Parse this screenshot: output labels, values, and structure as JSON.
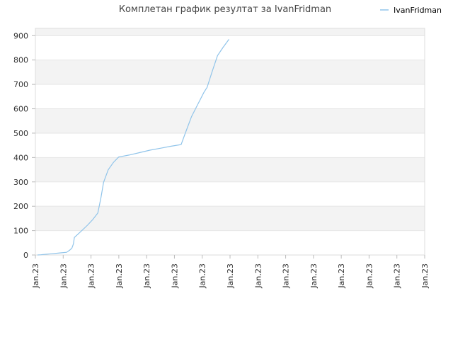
{
  "chart_data": {
    "type": "line",
    "title": "Комплетан график резултат за IvanFridman",
    "xlabel": "",
    "ylabel": "",
    "ylim": [
      0,
      930
    ],
    "y_ticks": [
      0,
      100,
      200,
      300,
      400,
      500,
      600,
      700,
      800,
      900
    ],
    "x_tick_labels": [
      "Jan.23",
      "Jan.23",
      "Jan.23",
      "Jan.23",
      "Jan.23",
      "Jan.23",
      "Jan.23",
      "Jan.23",
      "Jan.23",
      "Jan.23",
      "Jan.23",
      "Jan.23",
      "Jan.23",
      "Jan.23",
      "Jan.23"
    ],
    "grid": true,
    "grid_style": "alternating horizontal bands",
    "legend_position": "top-right",
    "series": [
      {
        "name": "IvanFridman",
        "color": "#90c4ea",
        "points": [
          [
            0.2,
            0
          ],
          [
            0.5,
            1
          ],
          [
            1,
            3
          ],
          [
            1.5,
            5
          ],
          [
            2,
            7
          ],
          [
            2.5,
            9
          ],
          [
            3,
            11
          ],
          [
            3.3,
            20
          ],
          [
            3.5,
            28
          ],
          [
            3.65,
            45
          ],
          [
            3.75,
            72
          ],
          [
            4,
            82
          ],
          [
            4.5,
            102
          ],
          [
            5,
            122
          ],
          [
            5.5,
            145
          ],
          [
            6,
            172
          ],
          [
            6.3,
            235
          ],
          [
            6.55,
            298
          ],
          [
            7,
            350
          ],
          [
            7.5,
            380
          ],
          [
            8,
            402
          ],
          [
            9,
            410
          ],
          [
            10,
            420
          ],
          [
            11,
            430
          ],
          [
            12,
            438
          ],
          [
            13,
            446
          ],
          [
            14,
            453
          ],
          [
            14.4,
            500
          ],
          [
            15,
            568
          ],
          [
            15.6,
            618
          ],
          [
            16.2,
            668
          ],
          [
            16.5,
            688
          ],
          [
            17,
            755
          ],
          [
            17.5,
            818
          ],
          [
            18,
            850
          ],
          [
            18.6,
            885
          ]
        ]
      }
    ],
    "x_range": [
      0,
      20
    ],
    "x_ticks_at": [
      0,
      2,
      4,
      6,
      8,
      10,
      12,
      14,
      16,
      18,
      20,
      21,
      22,
      23,
      24
    ]
  }
}
